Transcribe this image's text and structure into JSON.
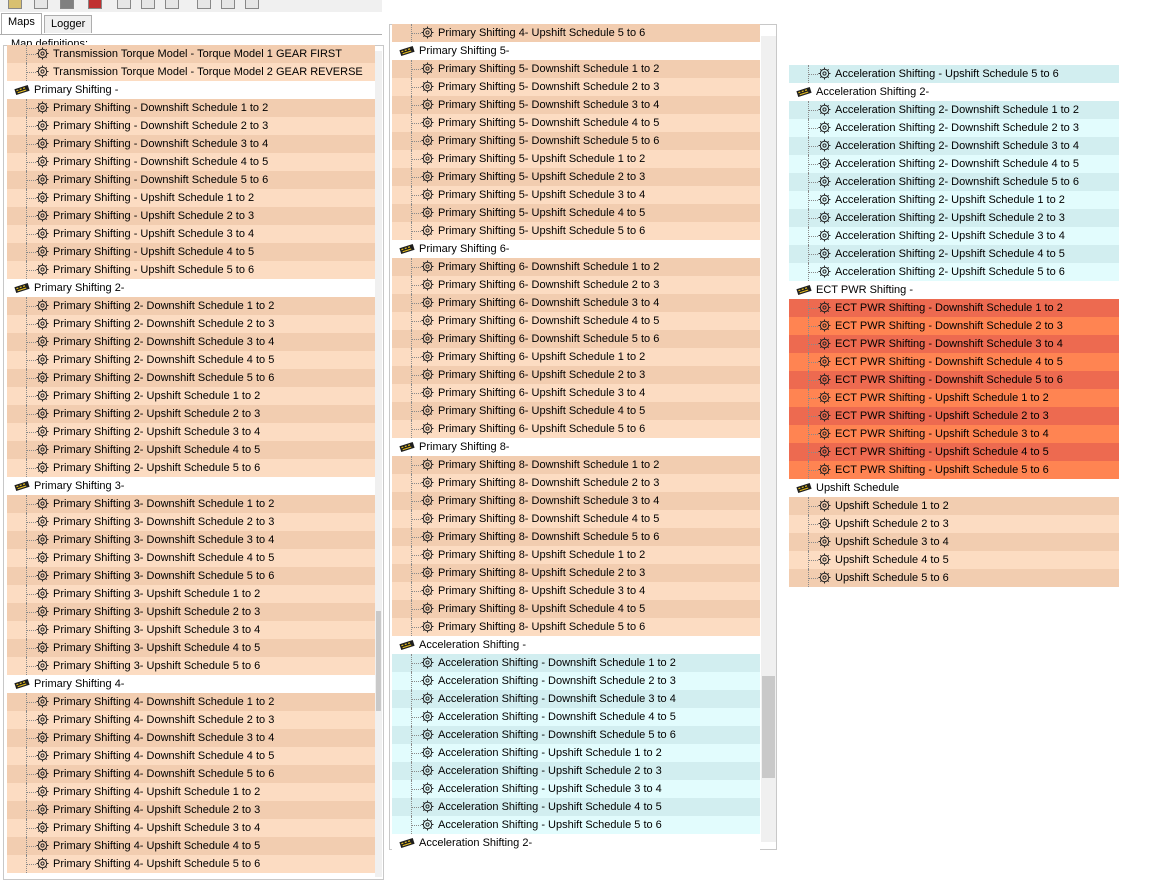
{
  "tabs": [
    "Maps",
    "Logger"
  ],
  "groupbox_label": "Map definitions:",
  "colors": {
    "peach_a": "#f2cdb0",
    "peach_b": "#fcdcc2",
    "cyan_a": "#d2eef0",
    "cyan_b": "#e2fcfd",
    "red_a": "#ed6a50",
    "red_b": "#ff8452",
    "folder_bg": "#ffffff"
  },
  "panels": {
    "left": [
      {
        "t": "map",
        "c": "peach",
        "label": "Transmission Torque Model - Torque Model 1 GEAR FIRST"
      },
      {
        "t": "map",
        "c": "peach",
        "label": "Transmission Torque Model - Torque Model 2 GEAR REVERSE"
      },
      {
        "t": "folder",
        "label": "Primary Shifting -"
      },
      {
        "t": "map",
        "c": "peach",
        "label": "Primary Shifting - Downshift Schedule 1 to 2"
      },
      {
        "t": "map",
        "c": "peach",
        "label": "Primary Shifting - Downshift Schedule 2 to 3"
      },
      {
        "t": "map",
        "c": "peach",
        "label": "Primary Shifting - Downshift Schedule 3 to 4"
      },
      {
        "t": "map",
        "c": "peach",
        "label": "Primary Shifting - Downshift Schedule 4 to 5"
      },
      {
        "t": "map",
        "c": "peach",
        "label": "Primary Shifting - Downshift Schedule 5 to 6"
      },
      {
        "t": "map",
        "c": "peach",
        "label": "Primary Shifting - Upshift Schedule 1 to 2"
      },
      {
        "t": "map",
        "c": "peach",
        "label": "Primary Shifting - Upshift Schedule 2 to 3"
      },
      {
        "t": "map",
        "c": "peach",
        "label": "Primary Shifting - Upshift Schedule 3 to 4"
      },
      {
        "t": "map",
        "c": "peach",
        "label": "Primary Shifting - Upshift Schedule 4 to 5"
      },
      {
        "t": "map",
        "c": "peach",
        "label": "Primary Shifting - Upshift Schedule 5 to 6"
      },
      {
        "t": "folder",
        "label": "Primary Shifting 2-"
      },
      {
        "t": "map",
        "c": "peach",
        "label": "Primary Shifting 2- Downshift Schedule 1 to 2"
      },
      {
        "t": "map",
        "c": "peach",
        "label": "Primary Shifting 2- Downshift Schedule 2 to 3"
      },
      {
        "t": "map",
        "c": "peach",
        "label": "Primary Shifting 2- Downshift Schedule 3 to 4"
      },
      {
        "t": "map",
        "c": "peach",
        "label": "Primary Shifting 2- Downshift Schedule 4 to 5"
      },
      {
        "t": "map",
        "c": "peach",
        "label": "Primary Shifting 2- Downshift Schedule 5 to 6"
      },
      {
        "t": "map",
        "c": "peach",
        "label": "Primary Shifting 2- Upshift Schedule 1 to 2"
      },
      {
        "t": "map",
        "c": "peach",
        "label": "Primary Shifting 2- Upshift Schedule 2 to 3"
      },
      {
        "t": "map",
        "c": "peach",
        "label": "Primary Shifting 2- Upshift Schedule 3 to 4"
      },
      {
        "t": "map",
        "c": "peach",
        "label": "Primary Shifting 2- Upshift Schedule 4 to 5"
      },
      {
        "t": "map",
        "c": "peach",
        "label": "Primary Shifting 2- Upshift Schedule 5 to 6"
      },
      {
        "t": "folder",
        "label": "Primary Shifting 3-"
      },
      {
        "t": "map",
        "c": "peach",
        "label": "Primary Shifting 3- Downshift Schedule 1 to 2"
      },
      {
        "t": "map",
        "c": "peach",
        "label": "Primary Shifting 3- Downshift Schedule 2 to 3"
      },
      {
        "t": "map",
        "c": "peach",
        "label": "Primary Shifting 3- Downshift Schedule 3 to 4"
      },
      {
        "t": "map",
        "c": "peach",
        "label": "Primary Shifting 3- Downshift Schedule 4 to 5"
      },
      {
        "t": "map",
        "c": "peach",
        "label": "Primary Shifting 3- Downshift Schedule 5 to 6"
      },
      {
        "t": "map",
        "c": "peach",
        "label": "Primary Shifting 3- Upshift Schedule 1 to 2"
      },
      {
        "t": "map",
        "c": "peach",
        "label": "Primary Shifting 3- Upshift Schedule 2 to 3"
      },
      {
        "t": "map",
        "c": "peach",
        "label": "Primary Shifting 3- Upshift Schedule 3 to 4"
      },
      {
        "t": "map",
        "c": "peach",
        "label": "Primary Shifting 3- Upshift Schedule 4 to 5"
      },
      {
        "t": "map",
        "c": "peach",
        "label": "Primary Shifting 3- Upshift Schedule 5 to 6"
      },
      {
        "t": "folder",
        "label": "Primary Shifting 4-"
      },
      {
        "t": "map",
        "c": "peach",
        "label": "Primary Shifting 4- Downshift Schedule 1 to 2"
      },
      {
        "t": "map",
        "c": "peach",
        "label": "Primary Shifting 4- Downshift Schedule 2 to 3"
      },
      {
        "t": "map",
        "c": "peach",
        "label": "Primary Shifting 4- Downshift Schedule 3 to 4"
      },
      {
        "t": "map",
        "c": "peach",
        "label": "Primary Shifting 4- Downshift Schedule 4 to 5"
      },
      {
        "t": "map",
        "c": "peach",
        "label": "Primary Shifting 4- Downshift Schedule 5 to 6"
      },
      {
        "t": "map",
        "c": "peach",
        "label": "Primary Shifting 4- Upshift Schedule 1 to 2"
      },
      {
        "t": "map",
        "c": "peach",
        "label": "Primary Shifting 4- Upshift Schedule 2 to 3"
      },
      {
        "t": "map",
        "c": "peach",
        "label": "Primary Shifting 4- Upshift Schedule 3 to 4"
      },
      {
        "t": "map",
        "c": "peach",
        "label": "Primary Shifting 4- Upshift Schedule 4 to 5"
      },
      {
        "t": "map",
        "c": "peach",
        "label": "Primary Shifting 4- Upshift Schedule 5 to 6"
      }
    ],
    "middle": [
      {
        "t": "map",
        "c": "peach",
        "label": "Primary Shifting 4- Upshift Schedule 5 to 6"
      },
      {
        "t": "folder",
        "label": "Primary Shifting 5-"
      },
      {
        "t": "map",
        "c": "peach",
        "label": "Primary Shifting 5- Downshift Schedule 1 to 2"
      },
      {
        "t": "map",
        "c": "peach",
        "label": "Primary Shifting 5- Downshift Schedule 2 to 3"
      },
      {
        "t": "map",
        "c": "peach",
        "label": "Primary Shifting 5- Downshift Schedule 3 to 4"
      },
      {
        "t": "map",
        "c": "peach",
        "label": "Primary Shifting 5- Downshift Schedule 4 to 5"
      },
      {
        "t": "map",
        "c": "peach",
        "label": "Primary Shifting 5- Downshift Schedule 5 to 6"
      },
      {
        "t": "map",
        "c": "peach",
        "label": "Primary Shifting 5- Upshift Schedule 1 to 2"
      },
      {
        "t": "map",
        "c": "peach",
        "label": "Primary Shifting 5- Upshift Schedule 2 to 3"
      },
      {
        "t": "map",
        "c": "peach",
        "label": "Primary Shifting 5- Upshift Schedule 3 to 4"
      },
      {
        "t": "map",
        "c": "peach",
        "label": "Primary Shifting 5- Upshift Schedule 4 to 5"
      },
      {
        "t": "map",
        "c": "peach",
        "label": "Primary Shifting 5- Upshift Schedule 5 to 6"
      },
      {
        "t": "folder",
        "label": "Primary Shifting 6-"
      },
      {
        "t": "map",
        "c": "peach",
        "label": "Primary Shifting 6- Downshift Schedule 1 to 2"
      },
      {
        "t": "map",
        "c": "peach",
        "label": "Primary Shifting 6- Downshift Schedule 2 to 3"
      },
      {
        "t": "map",
        "c": "peach",
        "label": "Primary Shifting 6- Downshift Schedule 3 to 4"
      },
      {
        "t": "map",
        "c": "peach",
        "label": "Primary Shifting 6- Downshift Schedule 4 to 5"
      },
      {
        "t": "map",
        "c": "peach",
        "label": "Primary Shifting 6- Downshift Schedule 5 to 6"
      },
      {
        "t": "map",
        "c": "peach",
        "label": "Primary Shifting 6- Upshift Schedule 1 to 2"
      },
      {
        "t": "map",
        "c": "peach",
        "label": "Primary Shifting 6- Upshift Schedule 2 to 3"
      },
      {
        "t": "map",
        "c": "peach",
        "label": "Primary Shifting 6- Upshift Schedule 3 to 4"
      },
      {
        "t": "map",
        "c": "peach",
        "label": "Primary Shifting 6- Upshift Schedule 4 to 5"
      },
      {
        "t": "map",
        "c": "peach",
        "label": "Primary Shifting 6- Upshift Schedule 5 to 6"
      },
      {
        "t": "folder",
        "label": "Primary Shifting 8-"
      },
      {
        "t": "map",
        "c": "peach",
        "label": "Primary Shifting 8- Downshift Schedule 1 to 2"
      },
      {
        "t": "map",
        "c": "peach",
        "label": "Primary Shifting 8- Downshift Schedule 2 to 3"
      },
      {
        "t": "map",
        "c": "peach",
        "label": "Primary Shifting 8- Downshift Schedule 3 to 4"
      },
      {
        "t": "map",
        "c": "peach",
        "label": "Primary Shifting 8- Downshift Schedule 4 to 5"
      },
      {
        "t": "map",
        "c": "peach",
        "label": "Primary Shifting 8- Downshift Schedule 5 to 6"
      },
      {
        "t": "map",
        "c": "peach",
        "label": "Primary Shifting 8- Upshift Schedule 1 to 2"
      },
      {
        "t": "map",
        "c": "peach",
        "label": "Primary Shifting 8- Upshift Schedule 2 to 3"
      },
      {
        "t": "map",
        "c": "peach",
        "label": "Primary Shifting 8- Upshift Schedule 3 to 4"
      },
      {
        "t": "map",
        "c": "peach",
        "label": "Primary Shifting 8- Upshift Schedule 4 to 5"
      },
      {
        "t": "map",
        "c": "peach",
        "label": "Primary Shifting 8- Upshift Schedule 5 to 6"
      },
      {
        "t": "folder",
        "label": "Acceleration Shifting -"
      },
      {
        "t": "map",
        "c": "cyan",
        "label": "Acceleration Shifting - Downshift Schedule 1 to 2"
      },
      {
        "t": "map",
        "c": "cyan",
        "label": "Acceleration Shifting - Downshift Schedule 2 to 3"
      },
      {
        "t": "map",
        "c": "cyan",
        "label": "Acceleration Shifting - Downshift Schedule 3 to 4"
      },
      {
        "t": "map",
        "c": "cyan",
        "label": "Acceleration Shifting - Downshift Schedule 4 to 5"
      },
      {
        "t": "map",
        "c": "cyan",
        "label": "Acceleration Shifting - Downshift Schedule 5 to 6"
      },
      {
        "t": "map",
        "c": "cyan",
        "label": "Acceleration Shifting - Upshift Schedule 1 to 2"
      },
      {
        "t": "map",
        "c": "cyan",
        "label": "Acceleration Shifting - Upshift Schedule 2 to 3"
      },
      {
        "t": "map",
        "c": "cyan",
        "label": "Acceleration Shifting - Upshift Schedule 3 to 4"
      },
      {
        "t": "map",
        "c": "cyan",
        "label": "Acceleration Shifting - Upshift Schedule 4 to 5"
      },
      {
        "t": "map",
        "c": "cyan",
        "label": "Acceleration Shifting - Upshift Schedule 5 to 6"
      },
      {
        "t": "folder",
        "label": "Acceleration Shifting 2-"
      }
    ],
    "right": [
      {
        "t": "map",
        "c": "cyan",
        "label": "Acceleration Shifting - Upshift Schedule 5 to 6"
      },
      {
        "t": "folder",
        "label": "Acceleration Shifting 2-"
      },
      {
        "t": "map",
        "c": "cyan",
        "label": "Acceleration Shifting 2- Downshift Schedule 1 to 2"
      },
      {
        "t": "map",
        "c": "cyan",
        "label": "Acceleration Shifting 2- Downshift Schedule 2 to 3"
      },
      {
        "t": "map",
        "c": "cyan",
        "label": "Acceleration Shifting 2- Downshift Schedule 3 to 4"
      },
      {
        "t": "map",
        "c": "cyan",
        "label": "Acceleration Shifting 2- Downshift Schedule 4 to 5"
      },
      {
        "t": "map",
        "c": "cyan",
        "label": "Acceleration Shifting 2- Downshift Schedule 5 to 6"
      },
      {
        "t": "map",
        "c": "cyan",
        "label": "Acceleration Shifting 2- Upshift Schedule 1 to 2"
      },
      {
        "t": "map",
        "c": "cyan",
        "label": "Acceleration Shifting 2- Upshift Schedule 2 to 3"
      },
      {
        "t": "map",
        "c": "cyan",
        "label": "Acceleration Shifting 2- Upshift Schedule 3 to 4"
      },
      {
        "t": "map",
        "c": "cyan",
        "label": "Acceleration Shifting 2- Upshift Schedule 4 to 5"
      },
      {
        "t": "map",
        "c": "cyan",
        "label": "Acceleration Shifting 2- Upshift Schedule 5 to 6"
      },
      {
        "t": "folder",
        "label": "ECT PWR Shifting -"
      },
      {
        "t": "map",
        "c": "red",
        "label": "ECT PWR Shifting - Downshift Schedule 1 to 2"
      },
      {
        "t": "map",
        "c": "red",
        "label": "ECT PWR Shifting - Downshift Schedule 2 to 3"
      },
      {
        "t": "map",
        "c": "red",
        "label": "ECT PWR Shifting - Downshift Schedule 3 to 4"
      },
      {
        "t": "map",
        "c": "red",
        "label": "ECT PWR Shifting - Downshift Schedule 4 to 5"
      },
      {
        "t": "map",
        "c": "red",
        "label": "ECT PWR Shifting - Downshift Schedule 5 to 6"
      },
      {
        "t": "map",
        "c": "red",
        "label": "ECT PWR Shifting - Upshift Schedule 1 to 2"
      },
      {
        "t": "map",
        "c": "red",
        "label": "ECT PWR Shifting - Upshift Schedule 2 to 3"
      },
      {
        "t": "map",
        "c": "red",
        "label": "ECT PWR Shifting - Upshift Schedule 3 to 4"
      },
      {
        "t": "map",
        "c": "red",
        "label": "ECT PWR Shifting - Upshift Schedule 4 to 5"
      },
      {
        "t": "map",
        "c": "red",
        "label": "ECT PWR Shifting - Upshift Schedule 5 to 6"
      },
      {
        "t": "folder",
        "label": "Upshift Schedule"
      },
      {
        "t": "map",
        "c": "peach",
        "label": "Upshift Schedule 1 to 2"
      },
      {
        "t": "map",
        "c": "peach",
        "label": "Upshift Schedule 2 to 3"
      },
      {
        "t": "map",
        "c": "peach",
        "label": "Upshift Schedule 3 to 4"
      },
      {
        "t": "map",
        "c": "peach",
        "label": "Upshift Schedule 4 to 5"
      },
      {
        "t": "map",
        "c": "peach",
        "label": "Upshift Schedule 5 to 6"
      }
    ]
  }
}
